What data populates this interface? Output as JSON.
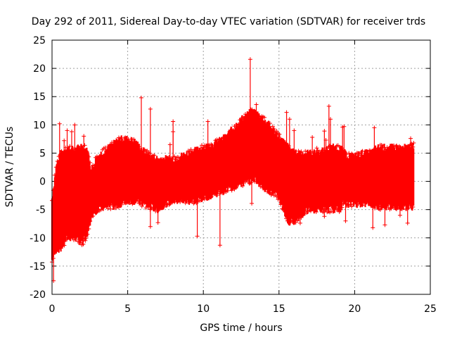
{
  "chart_data": {
    "type": "scatter",
    "title": "Day 292 of 2011, Sidereal Day-to-day VTEC variation (SDTVAR) for receiver trds",
    "xlabel": "GPS time / hours",
    "ylabel": "SDTVAR / TECUs",
    "xlim": [
      0,
      25
    ],
    "ylim": [
      -20,
      25
    ],
    "xticks": [
      0,
      5,
      10,
      15,
      20,
      25
    ],
    "yticks": [
      -20,
      -15,
      -10,
      -5,
      0,
      5,
      10,
      15,
      20,
      25
    ],
    "grid": true,
    "legend": "none",
    "marker": "+",
    "color": "#ff0000",
    "series": [
      {
        "name": "SDTVAR",
        "envelope": {
          "x": [
            0.0,
            0.3,
            0.6,
            1.0,
            1.5,
            2.0,
            2.4,
            2.6,
            3.0,
            3.5,
            4.0,
            4.5,
            5.0,
            5.5,
            6.0,
            6.5,
            7.0,
            7.5,
            8.0,
            8.5,
            9.0,
            9.5,
            10.0,
            10.5,
            11.0,
            11.5,
            12.0,
            12.5,
            13.0,
            13.3,
            13.6,
            14.0,
            14.5,
            15.0,
            15.3,
            15.6,
            16.0,
            16.5,
            17.0,
            17.5,
            18.0,
            18.5,
            19.0,
            19.2,
            19.5,
            20.0,
            20.5,
            21.0,
            21.5,
            22.0,
            22.5,
            23.0,
            23.5,
            23.9
          ],
          "upper": [
            -3.0,
            3.0,
            5.0,
            6.0,
            5.5,
            6.5,
            5.0,
            2.0,
            4.5,
            5.5,
            6.5,
            7.5,
            7.5,
            7.0,
            5.5,
            4.5,
            4.0,
            4.0,
            4.0,
            4.5,
            5.0,
            5.5,
            6.0,
            6.5,
            7.0,
            8.0,
            9.5,
            11.0,
            12.0,
            12.5,
            12.0,
            11.0,
            9.5,
            8.0,
            7.0,
            6.0,
            5.0,
            5.0,
            5.0,
            5.0,
            5.5,
            6.0,
            6.0,
            5.5,
            4.5,
            4.5,
            5.0,
            5.0,
            6.0,
            6.0,
            6.0,
            6.0,
            6.0,
            6.5
          ],
          "lower": [
            -14.0,
            -12.0,
            -12.0,
            -10.0,
            -10.0,
            -11.0,
            -9.0,
            -6.0,
            -5.0,
            -4.5,
            -4.5,
            -4.0,
            -3.5,
            -3.5,
            -4.0,
            -4.5,
            -5.0,
            -4.0,
            -3.5,
            -3.5,
            -3.5,
            -3.5,
            -3.0,
            -2.5,
            -2.0,
            -1.5,
            -1.0,
            -0.5,
            0.0,
            0.5,
            0.0,
            -1.0,
            -2.0,
            -3.0,
            -5.0,
            -7.5,
            -7.0,
            -6.0,
            -5.0,
            -5.0,
            -5.0,
            -5.0,
            -5.0,
            -4.0,
            -4.0,
            -4.0,
            -4.0,
            -4.0,
            -4.5,
            -4.5,
            -4.5,
            -4.5,
            -4.5,
            -4.5
          ]
        },
        "spikes": [
          {
            "x": 0.1,
            "y": -17.6
          },
          {
            "x": 0.5,
            "y": 10.2
          },
          {
            "x": 0.8,
            "y": 7.2
          },
          {
            "x": 1.0,
            "y": 9.0
          },
          {
            "x": 1.3,
            "y": 8.8
          },
          {
            "x": 1.5,
            "y": 10.0
          },
          {
            "x": 2.1,
            "y": 8.0
          },
          {
            "x": 2.2,
            "y": -10.5
          },
          {
            "x": 5.9,
            "y": 14.8
          },
          {
            "x": 6.5,
            "y": 12.8
          },
          {
            "x": 6.5,
            "y": -8.0
          },
          {
            "x": 7.0,
            "y": -7.3
          },
          {
            "x": 7.8,
            "y": 6.5
          },
          {
            "x": 8.0,
            "y": 8.8
          },
          {
            "x": 8.0,
            "y": 10.6
          },
          {
            "x": 9.6,
            "y": -9.7
          },
          {
            "x": 10.3,
            "y": 10.6
          },
          {
            "x": 11.1,
            "y": -11.3
          },
          {
            "x": 12.6,
            "y": 11.0
          },
          {
            "x": 13.1,
            "y": 21.6
          },
          {
            "x": 13.2,
            "y": -3.9
          },
          {
            "x": 13.5,
            "y": 13.6
          },
          {
            "x": 15.4,
            "y": 6.0
          },
          {
            "x": 15.5,
            "y": 12.2
          },
          {
            "x": 15.7,
            "y": 11.0
          },
          {
            "x": 16.0,
            "y": 9.0
          },
          {
            "x": 16.4,
            "y": -7.4
          },
          {
            "x": 17.2,
            "y": 7.8
          },
          {
            "x": 17.5,
            "y": 5.9
          },
          {
            "x": 17.8,
            "y": 4.0
          },
          {
            "x": 18.0,
            "y": -6.2
          },
          {
            "x": 18.0,
            "y": 8.9
          },
          {
            "x": 18.1,
            "y": 7.3
          },
          {
            "x": 18.3,
            "y": 13.3
          },
          {
            "x": 18.4,
            "y": 11.0
          },
          {
            "x": 19.2,
            "y": 9.6
          },
          {
            "x": 19.3,
            "y": 9.7
          },
          {
            "x": 19.4,
            "y": -7.0
          },
          {
            "x": 21.2,
            "y": -8.2
          },
          {
            "x": 21.3,
            "y": 9.5
          },
          {
            "x": 22.0,
            "y": -7.7
          },
          {
            "x": 23.0,
            "y": -6.0
          },
          {
            "x": 23.4,
            "y": 5.9
          },
          {
            "x": 23.5,
            "y": -7.4
          },
          {
            "x": 23.7,
            "y": 7.6
          },
          {
            "x": 23.9,
            "y": 6.8
          }
        ]
      }
    ]
  }
}
